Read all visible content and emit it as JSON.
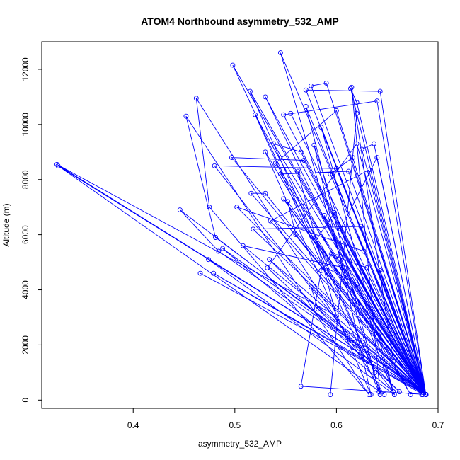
{
  "chart_data": {
    "type": "line",
    "title": "ATOM4 Northbound asymmetry_532_AMP",
    "xlabel": "asymmetry_532_AMP",
    "ylabel": "Altitude (m)",
    "xlim": [
      0.31,
      0.7
    ],
    "ylim": [
      -300,
      13000
    ],
    "x_ticks": [
      0.4,
      0.5,
      0.6,
      0.7
    ],
    "x_tick_labels": [
      "0.4",
      "0.5",
      "0.6",
      "0.7"
    ],
    "y_ticks": [
      0,
      2000,
      4000,
      6000,
      8000,
      10000,
      12000
    ],
    "y_tick_labels": [
      "0",
      "2000",
      "4000",
      "6000",
      "8000",
      "10000",
      "12000"
    ],
    "grid": false,
    "series_color": "#0000ff",
    "series": [
      {
        "marker": "open-circle",
        "points": [
          [
            0.688,
            200
          ],
          [
            0.565,
            500
          ],
          [
            0.585,
            4700
          ],
          [
            0.595,
            5300
          ],
          [
            0.688,
            200
          ],
          [
            0.555,
            10400
          ],
          [
            0.688,
            200
          ],
          [
            0.53,
            11000
          ],
          [
            0.656,
            1400
          ],
          [
            0.615,
            11350
          ],
          [
            0.643,
            200
          ],
          [
            0.545,
            12600
          ],
          [
            0.688,
            200
          ],
          [
            0.498,
            12150
          ],
          [
            0.638,
            1000
          ],
          [
            0.515,
            11200
          ],
          [
            0.688,
            200
          ],
          [
            0.548,
            7300
          ],
          [
            0.684,
            200
          ],
          [
            0.57,
            10650
          ],
          [
            0.642,
            300
          ],
          [
            0.52,
            10350
          ],
          [
            0.673,
            200
          ],
          [
            0.53,
            9000
          ],
          [
            0.634,
            200
          ],
          [
            0.578,
            9250
          ],
          [
            0.656,
            300
          ],
          [
            0.585,
            9900
          ],
          [
            0.688,
            200
          ],
          [
            0.562,
            8300
          ],
          [
            0.6,
            3050
          ],
          [
            0.325,
            8550
          ],
          [
            0.688,
            200
          ],
          [
            0.326,
            8500
          ],
          [
            0.647,
            200
          ],
          [
            0.462,
            10950
          ],
          [
            0.475,
            7000
          ],
          [
            0.632,
            200
          ],
          [
            0.452,
            10300
          ],
          [
            0.481,
            5900
          ],
          [
            0.688,
            200
          ],
          [
            0.588,
            6700
          ],
          [
            0.657,
            200
          ],
          [
            0.474,
            5100
          ],
          [
            0.688,
            200
          ],
          [
            0.466,
            4600
          ],
          [
            0.688,
            200
          ],
          [
            0.479,
            4600
          ],
          [
            0.685,
            200
          ],
          [
            0.446,
            6900
          ],
          [
            0.484,
            5400
          ],
          [
            0.688,
            200
          ],
          [
            0.488,
            5500
          ],
          [
            0.656,
            300
          ],
          [
            0.48,
            8500
          ],
          [
            0.6,
            8400
          ],
          [
            0.688,
            200
          ],
          [
            0.497,
            8800
          ],
          [
            0.568,
            8700
          ],
          [
            0.688,
            200
          ],
          [
            0.502,
            7000
          ],
          [
            0.627,
            5400
          ],
          [
            0.688,
            200
          ],
          [
            0.508,
            5600
          ],
          [
            0.608,
            4800
          ],
          [
            0.688,
            200
          ],
          [
            0.534,
            5100
          ],
          [
            0.662,
            300
          ],
          [
            0.532,
            4800
          ],
          [
            0.62,
            9300
          ],
          [
            0.688,
            200
          ],
          [
            0.518,
            6200
          ],
          [
            0.624,
            6300
          ],
          [
            0.688,
            200
          ],
          [
            0.535,
            6500
          ],
          [
            0.632,
            8350
          ],
          [
            0.688,
            200
          ],
          [
            0.545,
            8200
          ],
          [
            0.612,
            8300
          ],
          [
            0.688,
            200
          ],
          [
            0.54,
            8600
          ],
          [
            0.6,
            10500
          ],
          [
            0.688,
            200
          ],
          [
            0.548,
            10350
          ],
          [
            0.64,
            10850
          ],
          [
            0.688,
            200
          ],
          [
            0.57,
            11250
          ],
          [
            0.643,
            11200
          ],
          [
            0.688,
            200
          ],
          [
            0.59,
            11500
          ],
          [
            0.575,
            11400
          ],
          [
            0.688,
            200
          ],
          [
            0.614,
            11300
          ],
          [
            0.62,
            10800
          ],
          [
            0.688,
            200
          ],
          [
            0.625,
            9100
          ],
          [
            0.637,
            9300
          ],
          [
            0.688,
            200
          ],
          [
            0.64,
            8800
          ],
          [
            0.604,
            6200
          ],
          [
            0.688,
            200
          ],
          [
            0.598,
            6800
          ],
          [
            0.58,
            5800
          ],
          [
            0.688,
            200
          ],
          [
            0.575,
            4100
          ],
          [
            0.582,
            3300
          ],
          [
            0.688,
            200
          ],
          [
            0.59,
            4800
          ],
          [
            0.62,
            4200
          ],
          [
            0.688,
            200
          ],
          [
            0.645,
            4400
          ],
          [
            0.643,
            4700
          ],
          [
            0.688,
            200
          ],
          [
            0.63,
            4800
          ],
          [
            0.6,
            5200
          ],
          [
            0.688,
            200
          ],
          [
            0.56,
            6000
          ],
          [
            0.552,
            7200
          ],
          [
            0.688,
            200
          ],
          [
            0.53,
            7500
          ],
          [
            0.516,
            7500
          ],
          [
            0.688,
            200
          ],
          [
            0.538,
            9300
          ],
          [
            0.565,
            9000
          ],
          [
            0.688,
            200
          ],
          [
            0.594,
            8200
          ],
          [
            0.616,
            8800
          ],
          [
            0.688,
            200
          ],
          [
            0.62,
            10400
          ],
          [
            0.594,
            195
          ]
        ]
      }
    ]
  }
}
